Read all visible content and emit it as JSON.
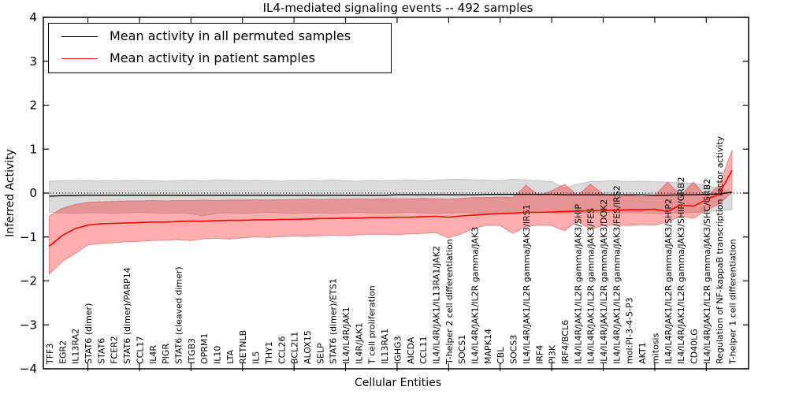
{
  "chart_data": {
    "type": "line",
    "title": "IL4-mediated signaling events -- 492 samples",
    "xlabel": "Cellular Entities",
    "ylabel": "Inferred Activity",
    "ylim": [
      -4,
      4
    ],
    "yticks": [
      4,
      3,
      2,
      1,
      0,
      -1,
      -2,
      -3,
      -4
    ],
    "ytick_labels": [
      "4",
      "3",
      "2",
      "1",
      "0",
      "−1",
      "−2",
      "−3",
      "−4"
    ],
    "grid": false,
    "zero_line": "dotted",
    "legend_position": "upper left",
    "legend_entries": [
      {
        "label": "Mean activity in all permuted samples",
        "color": "#000000"
      },
      {
        "label": "Mean activity in patient samples",
        "color": "#ff0000"
      }
    ],
    "categories": [
      "TFF3",
      "EGR2",
      "IL13RA2",
      "STAT6 (dimer)",
      "STAT6",
      "FCER2",
      "STAT6 (dimer)/PARP14",
      "CCL17",
      "IL4R",
      "PIGR",
      "STAT6 (cleaved dimer)",
      "ITGB3",
      "OPRM1",
      "IL10",
      "LTA",
      "RETNLB",
      "IL5",
      "THY1",
      "CCL26",
      "BCL2L1",
      "ALOX15",
      "SELP",
      "STAT6 (dimer)/ETS1",
      "IL4/IL4R/JAK1",
      "IL4R/JAK1",
      "T cell proliferation",
      "IL13RA1",
      "IGHG3",
      "AICDA",
      "CCL11",
      "IL4/IL4R/JAK1/IL13RA1/JAK2",
      "T-helper 2 cell differentiation",
      "SOCS1",
      "IL4/IL4R/JAK1/IL2R gamma/JAK3",
      "MAPK14",
      "CBL",
      "SOCS3",
      "IL4/IL4R/JAK1/IL2R gamma/JAK3/IRS1",
      "IRF4",
      "PI3K",
      "IRF4/BCL6",
      "IL4/IL4R/JAK1/IL2R gamma/JAK3/SHIP",
      "IL4/IL4R/JAK1/IL2R gamma/JAK3/FES",
      "IL4/IL4R/JAK1/IL2R gamma/JAK3/DOK2",
      "IL4/IL4R/JAK1/IL2R gamma/JAK3/FES/IRS2",
      "mol:PI-3-4-5-P3",
      "AKT1",
      "mitosis",
      "IL4/IL4R/JAK1/IL2R gamma/JAK3/SHIP2",
      "IL4/IL4R/JAK1/IL2R gamma/JAK3/SHIP/GRB2",
      "CD40LG",
      "IL4/IL4R/JAK1/IL2R gamma/JAK3/SHC/GRB2",
      "Regulation of NF-kappaB transcription factor activity",
      "T-helper 1 cell differentiation"
    ],
    "series": [
      {
        "name": "Mean activity in all permuted samples",
        "color": "#000000",
        "band_color": "#999999",
        "band_opacity": 0.35,
        "values": [
          -0.07,
          -0.06,
          -0.06,
          -0.05,
          -0.05,
          -0.05,
          -0.05,
          -0.05,
          -0.05,
          -0.05,
          -0.05,
          -0.05,
          -0.05,
          -0.05,
          -0.05,
          -0.05,
          -0.05,
          -0.05,
          -0.05,
          -0.05,
          -0.05,
          -0.05,
          -0.05,
          -0.05,
          -0.05,
          -0.05,
          -0.05,
          -0.04,
          -0.04,
          -0.04,
          -0.04,
          -0.04,
          -0.04,
          -0.04,
          -0.03,
          -0.03,
          -0.03,
          -0.03,
          -0.03,
          -0.03,
          -0.04,
          -0.04,
          -0.04,
          -0.04,
          -0.04,
          -0.04,
          -0.04,
          -0.05,
          -0.05,
          -0.04,
          -0.04,
          -0.03,
          -0.02,
          0.02
        ],
        "band_upper": [
          0.27,
          0.28,
          0.28,
          0.29,
          0.28,
          0.28,
          0.29,
          0.28,
          0.28,
          0.27,
          0.28,
          0.29,
          0.28,
          0.3,
          0.29,
          0.28,
          0.29,
          0.28,
          0.27,
          0.28,
          0.29,
          0.28,
          0.3,
          0.28,
          0.27,
          0.29,
          0.28,
          0.28,
          0.3,
          0.28,
          0.29,
          0.31,
          0.32,
          0.3,
          0.29,
          0.28,
          0.32,
          0.3,
          0.28,
          0.26,
          0.12,
          0.2,
          0.26,
          0.27,
          0.28,
          0.26,
          0.27,
          0.26,
          0.25,
          0.24,
          0.22,
          0.18,
          0.1,
          0.02
        ],
        "band_lower": [
          -0.44,
          -0.45,
          -0.46,
          -0.45,
          -0.45,
          -0.46,
          -0.45,
          -0.44,
          -0.45,
          -0.46,
          -0.45,
          -0.47,
          -0.52,
          -0.46,
          -0.45,
          -0.46,
          -0.45,
          -0.44,
          -0.45,
          -0.46,
          -0.45,
          -0.45,
          -0.46,
          -0.45,
          -0.44,
          -0.45,
          -0.46,
          -0.45,
          -0.44,
          -0.45,
          -0.46,
          -0.45,
          -0.44,
          -0.45,
          -0.46,
          -0.45,
          -0.44,
          -0.45,
          -0.44,
          -0.45,
          -0.46,
          -0.44,
          -0.45,
          -0.44,
          -0.45,
          -0.44,
          -0.45,
          -0.46,
          -0.45,
          -0.44,
          -0.44,
          -0.42,
          -0.4,
          -0.38
        ]
      },
      {
        "name": "Mean activity in patient samples",
        "color": "#ff0000",
        "band_color": "#ff0000",
        "band_opacity": 0.32,
        "values": [
          -1.21,
          -0.97,
          -0.81,
          -0.73,
          -0.7,
          -0.69,
          -0.68,
          -0.67,
          -0.66,
          -0.66,
          -0.65,
          -0.64,
          -0.64,
          -0.63,
          -0.62,
          -0.62,
          -0.61,
          -0.61,
          -0.6,
          -0.6,
          -0.59,
          -0.58,
          -0.58,
          -0.57,
          -0.57,
          -0.56,
          -0.56,
          -0.55,
          -0.55,
          -0.54,
          -0.53,
          -0.55,
          -0.52,
          -0.5,
          -0.48,
          -0.47,
          -0.46,
          -0.44,
          -0.44,
          -0.43,
          -0.42,
          -0.41,
          -0.4,
          -0.4,
          -0.39,
          -0.38,
          -0.38,
          -0.37,
          -0.42,
          -0.27,
          -0.3,
          -0.15,
          -0.02,
          0.52
        ],
        "band_upper": [
          -0.52,
          -0.35,
          -0.26,
          -0.21,
          -0.2,
          -0.19,
          -0.18,
          -0.18,
          -0.17,
          -0.18,
          -0.17,
          -0.17,
          -0.16,
          -0.17,
          -0.16,
          -0.16,
          -0.15,
          -0.16,
          -0.15,
          -0.15,
          -0.14,
          -0.15,
          -0.14,
          -0.14,
          -0.13,
          -0.14,
          -0.13,
          -0.13,
          -0.13,
          -0.12,
          -0.13,
          -0.14,
          -0.12,
          -0.1,
          -0.1,
          -0.09,
          -0.1,
          0.18,
          -0.05,
          0.05,
          0.2,
          -0.05,
          0.2,
          -0.02,
          -0.08,
          -0.06,
          -0.08,
          -0.05,
          0.25,
          -0.05,
          0.25,
          -0.08,
          0.18,
          0.98
        ],
        "band_lower": [
          -1.85,
          -1.56,
          -1.38,
          -1.18,
          -1.15,
          -1.13,
          -1.11,
          -1.1,
          -1.08,
          -1.07,
          -1.06,
          -1.08,
          -1.04,
          -1.03,
          -1.05,
          -1.02,
          -1.0,
          -1.01,
          -0.99,
          -0.98,
          -0.99,
          -0.97,
          -0.96,
          -0.97,
          -0.95,
          -0.94,
          -0.94,
          -0.95,
          -0.93,
          -0.92,
          -0.9,
          -1.02,
          -0.93,
          -0.8,
          -0.73,
          -0.74,
          -0.92,
          -0.76,
          -0.73,
          -0.74,
          -0.86,
          -0.64,
          -0.82,
          -0.74,
          -0.73,
          -0.74,
          -0.72,
          -0.73,
          -0.66,
          -0.52,
          -0.58,
          -0.4,
          -0.25,
          0.02
        ]
      }
    ]
  }
}
